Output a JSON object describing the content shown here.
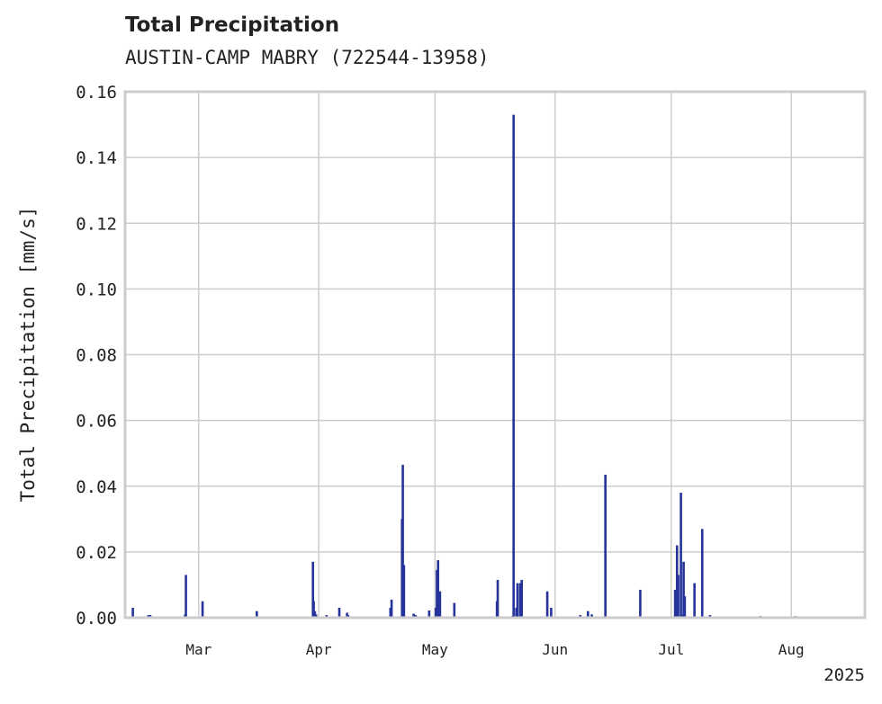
{
  "chart_data": {
    "type": "bar",
    "title": "Total Precipitation",
    "subtitle": "AUSTIN-CAMP MABRY (722544-13958)",
    "xlabel": "",
    "ylabel": "Total Precipitation [mm/s]",
    "ylim": [
      0,
      0.16
    ],
    "yticks": [
      0.0,
      0.02,
      0.04,
      0.06,
      0.08,
      0.1,
      0.12,
      0.14,
      0.16
    ],
    "ytick_labels": [
      "0.00",
      "0.02",
      "0.04",
      "0.06",
      "0.08",
      "0.10",
      "0.12",
      "0.14",
      "0.16"
    ],
    "xlim_day_of_year": [
      41,
      232
    ],
    "xticks": [
      {
        "label": "Mar",
        "day": 60
      },
      {
        "label": "Apr",
        "day": 91
      },
      {
        "label": "May",
        "day": 121
      },
      {
        "label": "Jun",
        "day": 152
      },
      {
        "label": "Jul",
        "day": 182
      },
      {
        "label": "Aug",
        "day": 213
      }
    ],
    "year_label": "2025",
    "grid": true,
    "series": [
      {
        "name": "Total Precipitation",
        "color": "#25339b",
        "x_day_of_year": [
          43,
          47,
          47.5,
          56.5,
          56.7,
          61,
          75,
          89.5,
          89.7,
          90,
          90.3,
          93,
          96.3,
          98.3,
          98.6,
          109.5,
          109.8,
          112.5,
          112.7,
          113,
          115.5,
          116,
          119.5,
          121.2,
          121.5,
          121.8,
          122.3,
          126,
          137,
          137.2,
          141,
          141.3,
          142,
          142.3,
          143,
          143.4,
          150,
          151,
          158.5,
          160.5,
          161.5,
          165,
          174,
          183,
          183.5,
          183.8,
          184.5,
          184.8,
          185.2,
          185.5,
          188,
          190,
          192,
          205,
          214
        ],
        "values": [
          0.003,
          0.0008,
          0.0008,
          0.001,
          0.013,
          0.005,
          0.002,
          0.017,
          0.005,
          0.002,
          0.001,
          0.0008,
          0.003,
          0.0015,
          0.0008,
          0.003,
          0.0055,
          0.03,
          0.0465,
          0.016,
          0.0012,
          0.0008,
          0.0022,
          0.003,
          0.0145,
          0.0175,
          0.008,
          0.0045,
          0.005,
          0.0115,
          0.0005,
          0.153,
          0.003,
          0.0105,
          0.0105,
          0.0115,
          0.008,
          0.003,
          0.0008,
          0.002,
          0.001,
          0.0435,
          0.0085,
          0.0085,
          0.022,
          0.013,
          0.038,
          0.001,
          0.017,
          0.0065,
          0.0105,
          0.027,
          0.0008,
          0.0005,
          0.0005
        ]
      }
    ]
  },
  "colors": {
    "bar": "#25339b",
    "grid": "#cccccc",
    "frame": "#cccccc",
    "text": "#222222"
  }
}
